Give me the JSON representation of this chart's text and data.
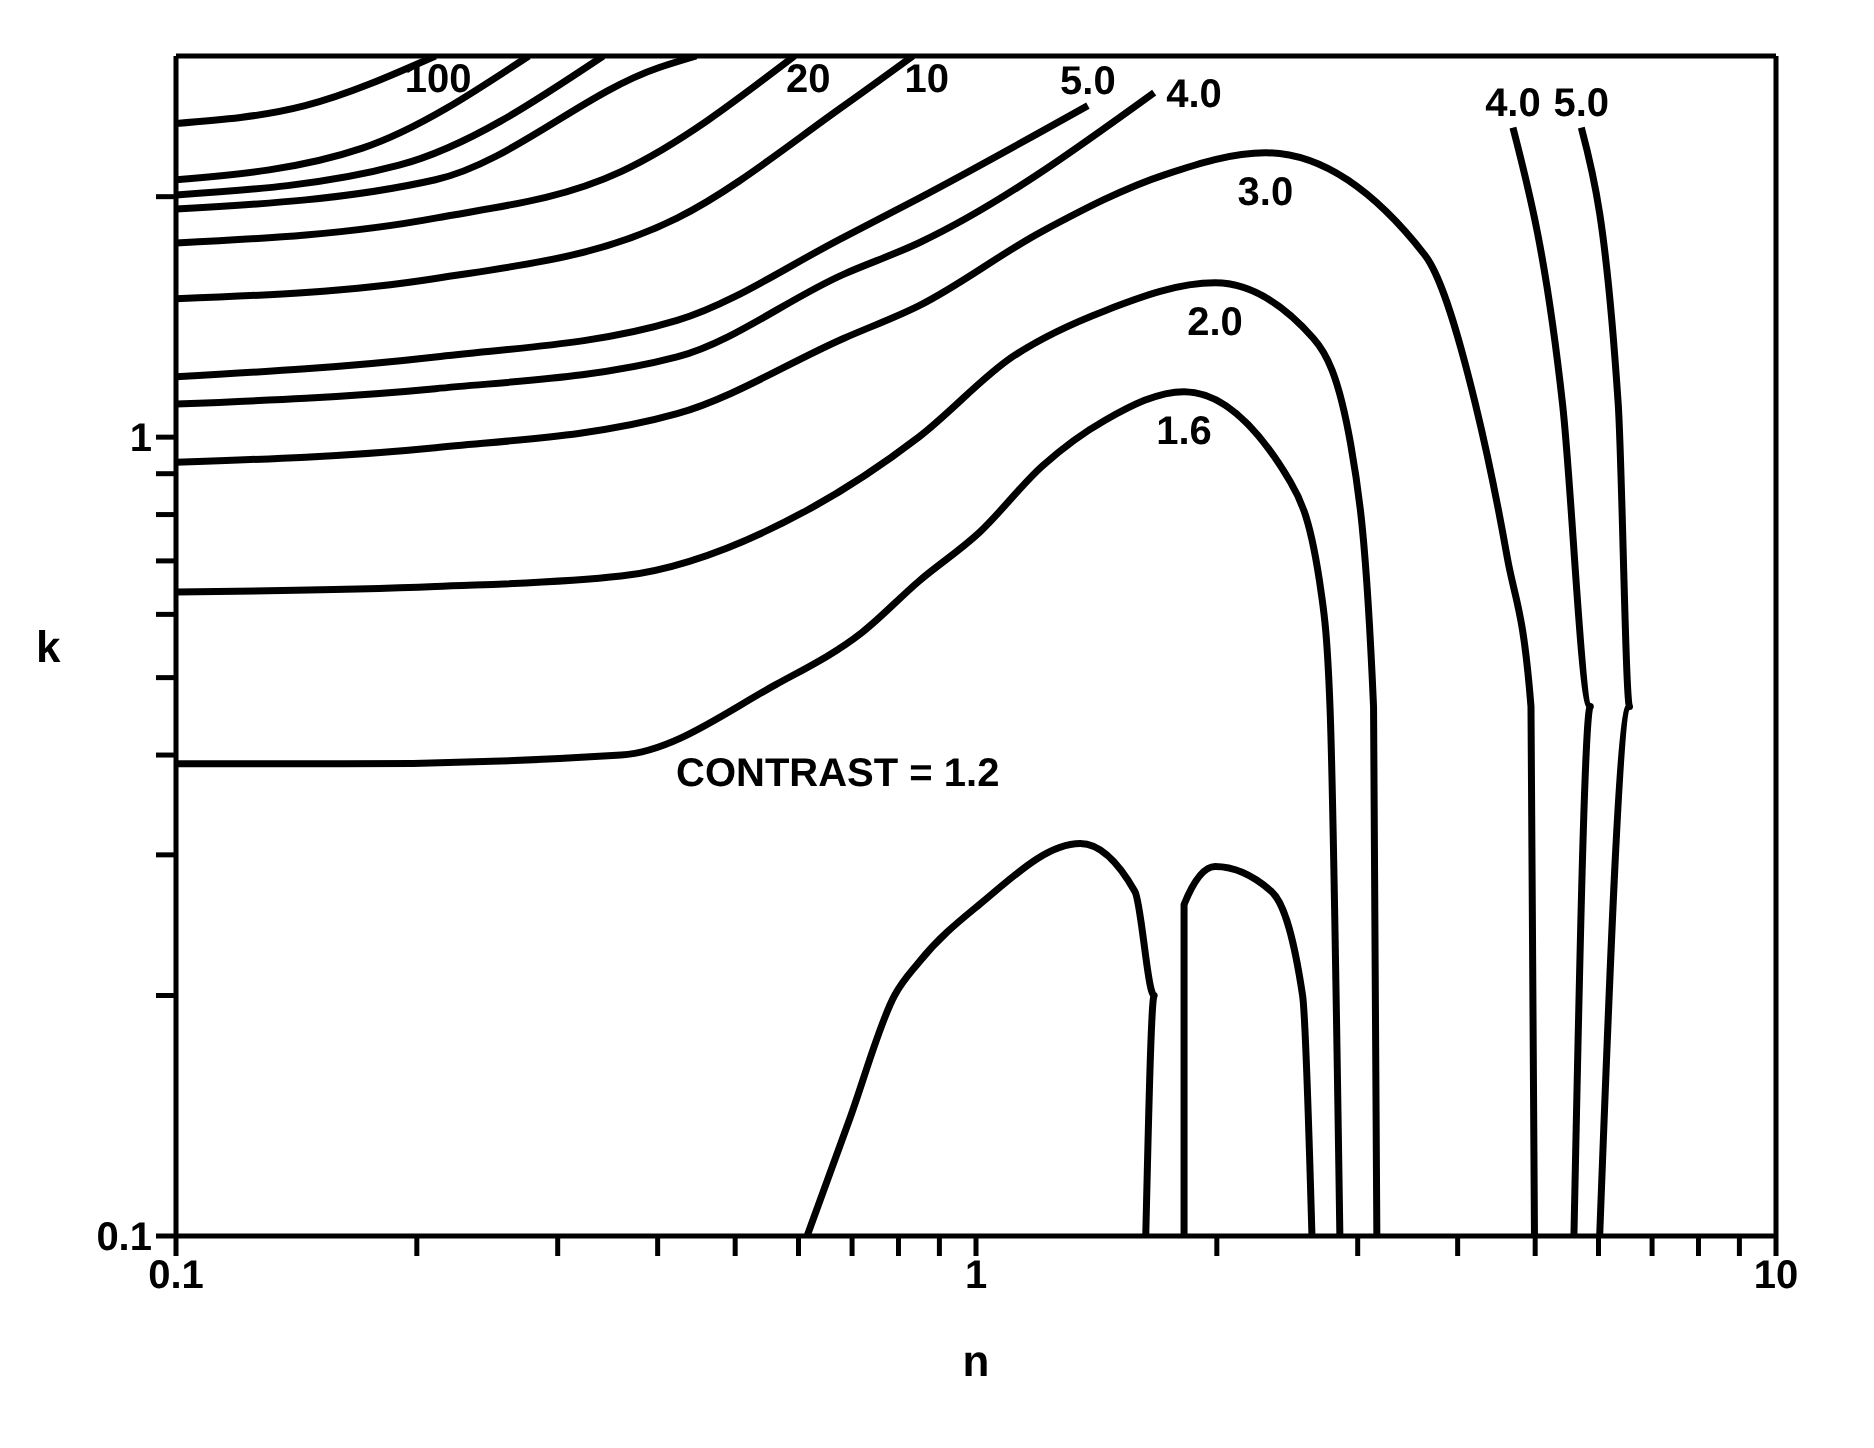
{
  "chart_data": {
    "type": "line",
    "xlabel": "n",
    "ylabel": "k",
    "log": "xy",
    "legend": false,
    "marker": "none",
    "line_style": "solid",
    "xlim": [
      0.1,
      10
    ],
    "ylim": [
      0.1,
      3
    ],
    "xticks": [
      0.1,
      {
        "value": 0.2,
        "label": null
      },
      {
        "value": 0.3,
        "label": null
      },
      {
        "value": 0.4,
        "label": null
      },
      {
        "value": 0.5,
        "label": null
      },
      {
        "value": 0.6,
        "label": null
      },
      {
        "value": 0.7,
        "label": null
      },
      {
        "value": 0.8,
        "label": null
      },
      {
        "value": 0.9,
        "label": null
      },
      1,
      {
        "value": 2,
        "label": null
      },
      {
        "value": 3,
        "label": null
      },
      {
        "value": 4,
        "label": null
      },
      {
        "value": 5,
        "label": null
      },
      {
        "value": 6,
        "label": null
      },
      {
        "value": 7,
        "label": null
      },
      {
        "value": 8,
        "label": null
      },
      {
        "value": 9,
        "label": null
      },
      10
    ],
    "yticks": [
      0.1,
      {
        "value": 0.2,
        "label": null
      },
      {
        "value": 0.3,
        "label": null
      },
      {
        "value": 0.4,
        "label": null
      },
      {
        "value": 0.5,
        "label": null
      },
      {
        "value": 0.6,
        "label": null
      },
      {
        "value": 0.7,
        "label": null
      },
      {
        "value": 0.8,
        "label": null
      },
      {
        "value": 0.9,
        "label": null
      },
      1,
      {
        "value": 2,
        "label": null
      }
    ],
    "series": [
      {
        "name": "1.6",
        "color": "#000000",
        "x": [
          0.1,
          0.162,
          0.36,
          0.562,
          0.721,
          0.848,
          1.01,
          1.21,
          1.45,
          1.82,
          2.47,
          2.7,
          2.77,
          2.85
        ],
        "values": [
          0.39,
          0.39,
          0.4,
          0.49,
          0.57,
          0.66,
          0.76,
          0.92,
          1.05,
          1.14,
          0.88,
          0.64,
          0.46,
          0.1
        ]
      },
      {
        "name": "2.0",
        "color": "#000000",
        "x": [
          0.1,
          0.211,
          0.36,
          0.615,
          0.848,
          1.11,
          1.45,
          1.99,
          2.64,
          2.94,
          3.14,
          3.17
        ],
        "values": [
          0.64,
          0.65,
          0.67,
          0.81,
          1.0,
          1.26,
          1.44,
          1.56,
          1.33,
          0.98,
          0.46,
          0.1
        ]
      },
      {
        "name": "3.0",
        "color": "#000000",
        "x": [
          0.1,
          0.211,
          0.423,
          0.684,
          0.848,
          1.21,
          1.72,
          2.3,
          3.64,
          4.21,
          4.61,
          4.94,
          4.99
        ],
        "values": [
          0.93,
          0.97,
          1.07,
          1.33,
          1.46,
          1.81,
          2.13,
          2.27,
          1.69,
          1.1,
          0.71,
          0.46,
          0.1
        ]
      },
      {
        "name": "4.0",
        "color": "#000000",
        "x": [
          0.1,
          0.211,
          0.423,
          0.684,
          0.848,
          1.67
        ],
        "values": [
          1.1,
          1.15,
          1.26,
          1.6,
          1.75,
          2.7
        ]
      },
      {
        "name": "5.0",
        "color": "#000000",
        "x": [
          0.1,
          0.211,
          0.423,
          0.684,
          0.848,
          1.38
        ],
        "values": [
          1.19,
          1.26,
          1.4,
          1.78,
          1.99,
          2.6
        ]
      },
      {
        "name": "4.0",
        "color": "#000000",
        "x": [
          4.69,
          5.41,
          5.86,
          5.59
        ],
        "values": [
          2.44,
          1.1,
          0.46,
          0.1
        ]
      },
      {
        "name": "5.0",
        "color": "#000000",
        "x": [
          5.71,
          6.35,
          6.56,
          6.02
        ],
        "values": [
          2.44,
          1.1,
          0.46,
          0.1
        ]
      },
      {
        "name": "10",
        "color": "#000000",
        "x": [
          0.1,
          0.211,
          0.423,
          0.684,
          0.834
        ],
        "values": [
          1.49,
          1.58,
          1.88,
          2.6,
          3
        ]
      },
      {
        "name": "20",
        "color": "#000000",
        "x": [
          0.1,
          0.211,
          0.36,
          0.593
        ],
        "values": [
          1.75,
          1.88,
          2.15,
          3
        ]
      },
      {
        "color": "#000000",
        "x": [
          0.1,
          0.211,
          0.401,
          0.447
        ],
        "values": [
          1.93,
          2.1,
          2.9,
          3
        ]
      },
      {
        "color": "#000000",
        "x": [
          0.1,
          0.19,
          0.342
        ],
        "values": [
          2.01,
          2.19,
          3
        ]
      },
      {
        "color": "#000000",
        "x": [
          0.1,
          0.171,
          0.276
        ],
        "values": [
          2.1,
          2.3,
          3
        ]
      },
      {
        "name": "100",
        "color": "#000000",
        "x": [
          0.1,
          0.145,
          0.211
        ],
        "values": [
          2.47,
          2.6,
          3
        ]
      },
      {
        "color": "#000000",
        "x": [
          0.615,
          0.695,
          0.791,
          0.848,
          1.01,
          1.35,
          1.58,
          1.67,
          1.63
        ],
        "values": [
          0.1,
          0.14,
          0.2,
          0.22,
          0.26,
          0.31,
          0.27,
          0.2,
          0.1
        ]
      },
      {
        "color": "#000000",
        "x": [
          1.82,
          1.82,
          1.99,
          2.34,
          2.56,
          2.63
        ],
        "values": [
          0.1,
          0.26,
          0.29,
          0.27,
          0.2,
          0.1
        ]
      }
    ],
    "annotations": [
      "CONTRAST = 1.2"
    ]
  }
}
